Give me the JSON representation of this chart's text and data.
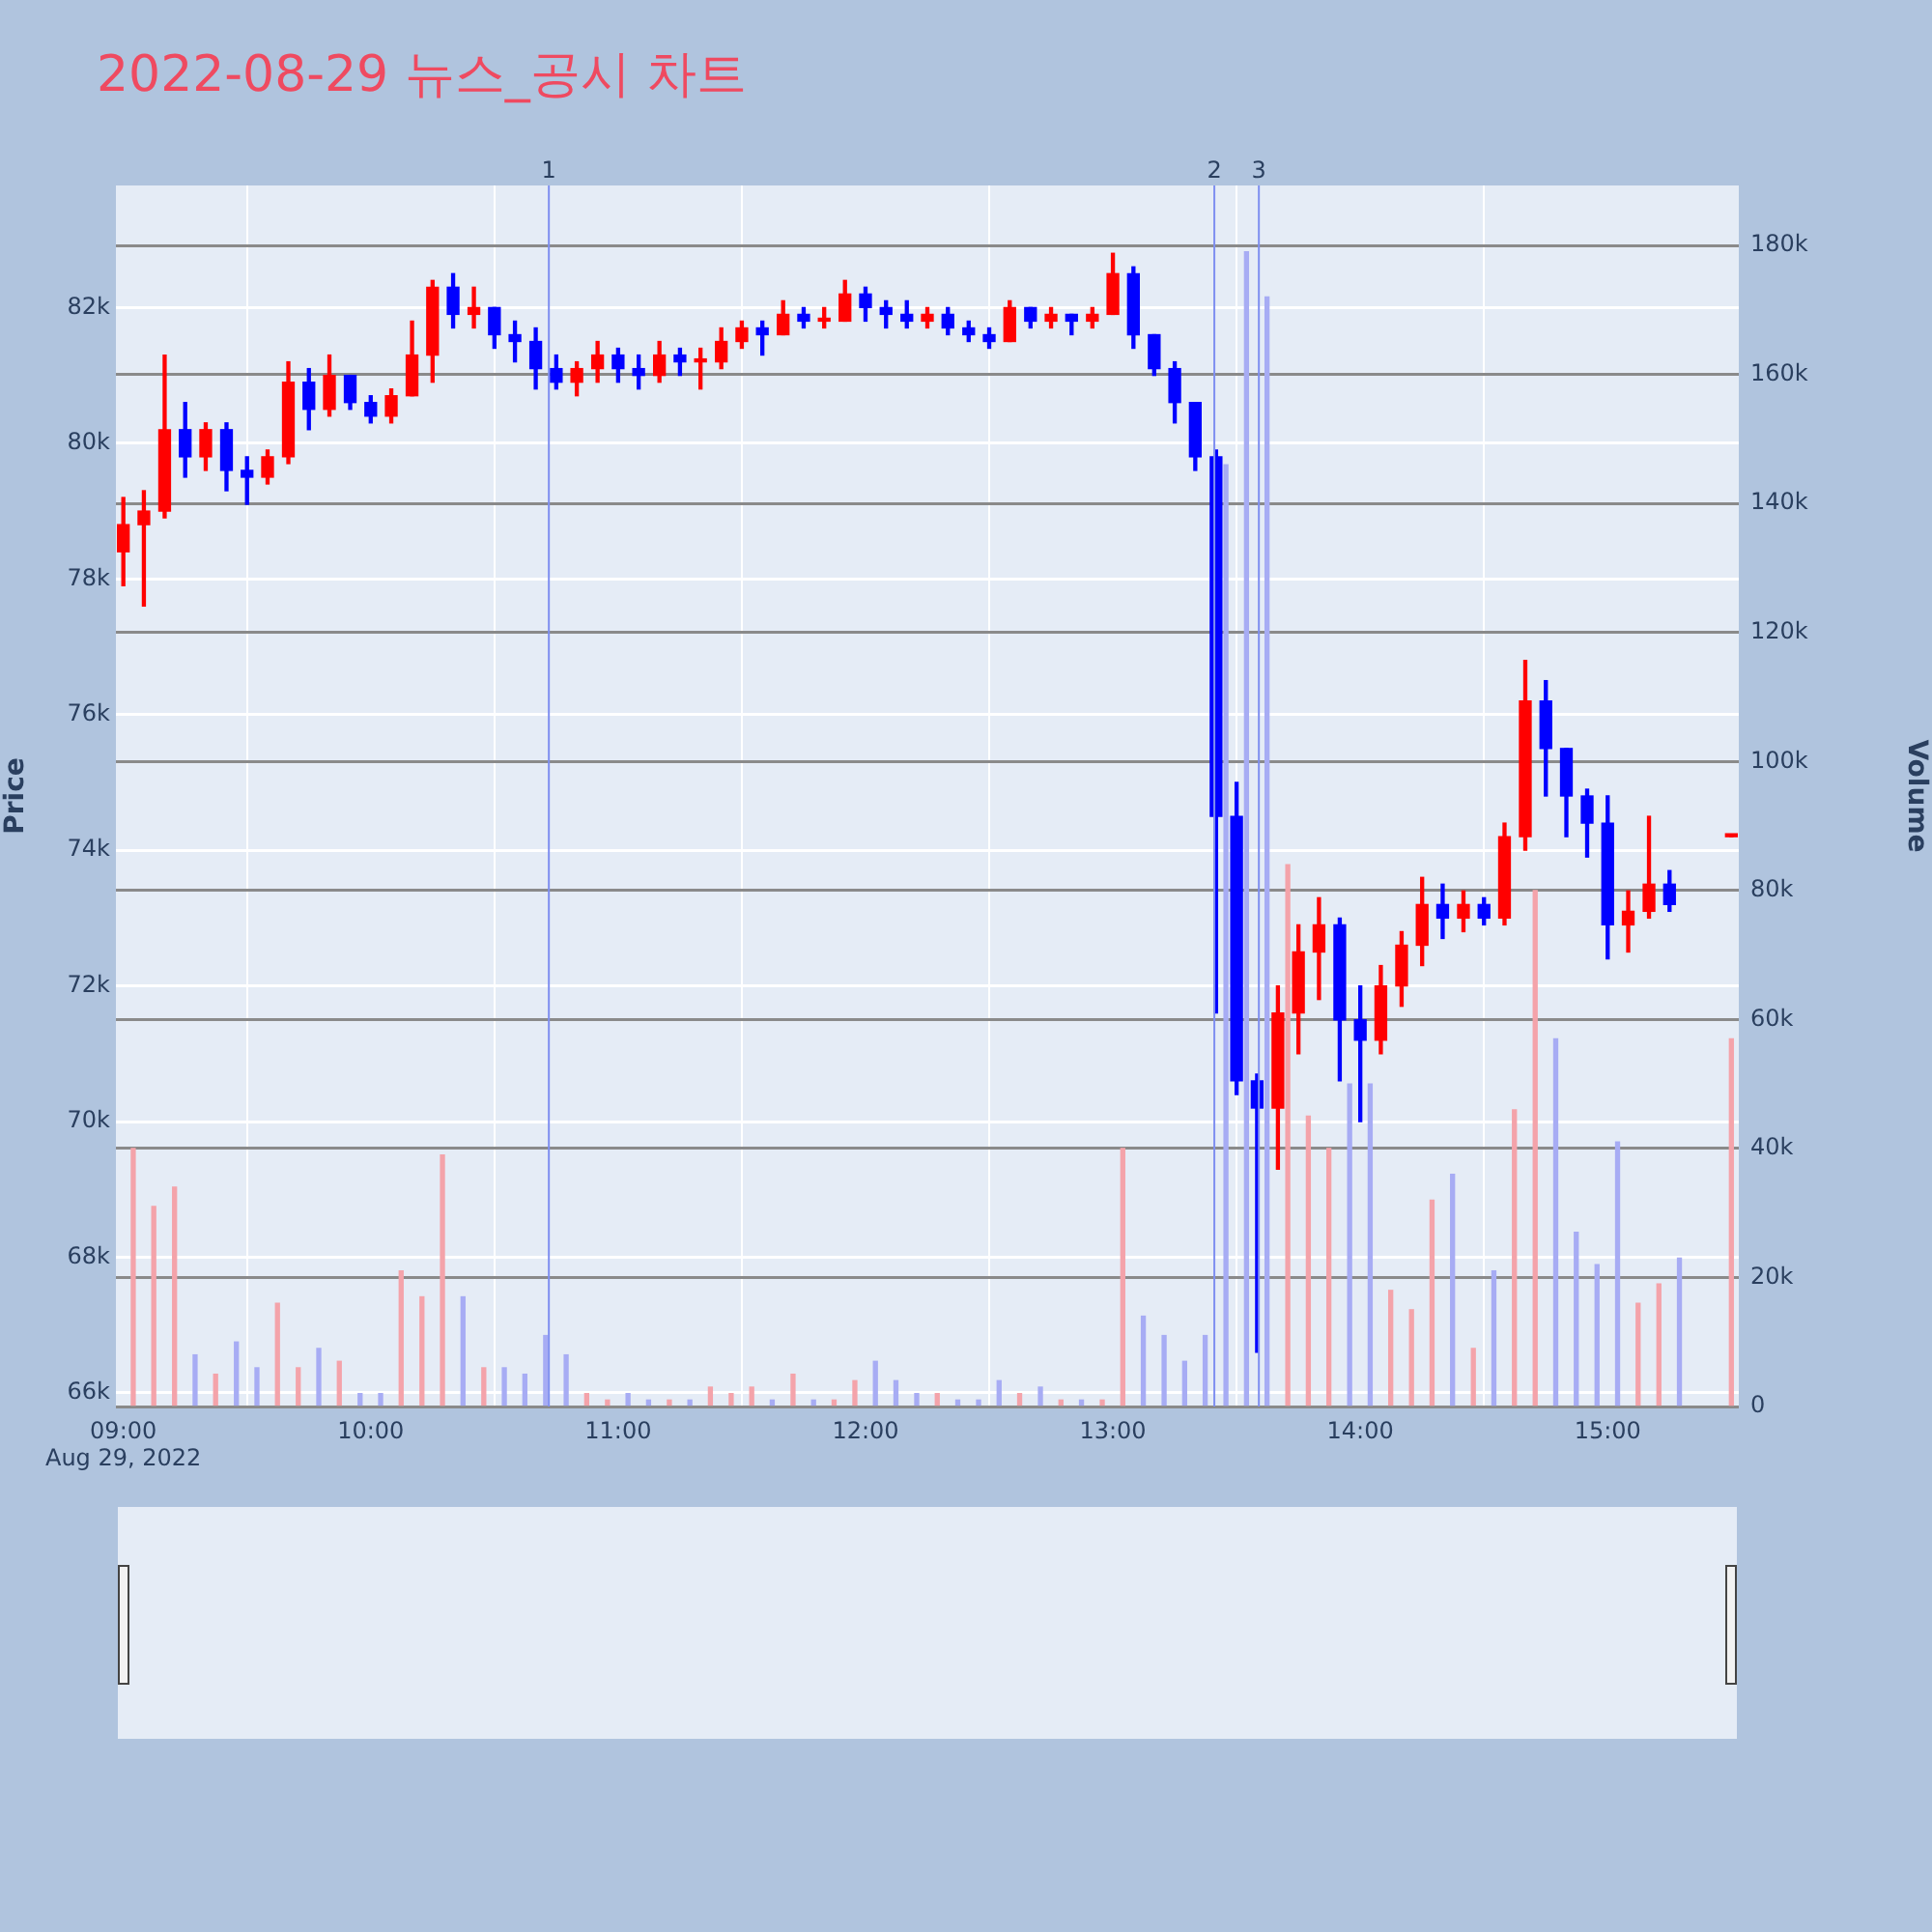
{
  "chart_data": {
    "type": "candlestick",
    "title": "2022-08-29 뉴스_공시 차트",
    "ylabel": "Price",
    "y2label": "Volume",
    "x": [
      9.0,
      9.083,
      9.167,
      9.25,
      9.333,
      9.417,
      9.5,
      9.583,
      9.667,
      9.75,
      9.833,
      9.917,
      10.0,
      10.083,
      10.167,
      10.25,
      10.333,
      10.417,
      10.5,
      10.583,
      10.667,
      10.75,
      10.833,
      10.917,
      11.0,
      11.083,
      11.167,
      11.25,
      11.333,
      11.417,
      11.5,
      11.583,
      11.667,
      11.75,
      11.833,
      11.917,
      12.0,
      12.083,
      12.167,
      12.25,
      12.333,
      12.417,
      12.5,
      12.583,
      12.667,
      12.75,
      12.833,
      12.917,
      13.0,
      13.083,
      13.167,
      13.25,
      13.333,
      13.417,
      13.5,
      13.583,
      13.667,
      13.75,
      13.833,
      13.917,
      14.0,
      14.083,
      14.167,
      14.25,
      14.333,
      14.417,
      14.5,
      14.583,
      14.667,
      14.75,
      14.833,
      14.917,
      15.0,
      15.083,
      15.167,
      15.25,
      15.5
    ],
    "ohlc": [
      [
        78400,
        79200,
        77900,
        78800
      ],
      [
        78800,
        79300,
        77600,
        79000
      ],
      [
        79000,
        81300,
        78900,
        80200
      ],
      [
        80200,
        80600,
        79500,
        79800
      ],
      [
        79800,
        80300,
        79600,
        80200
      ],
      [
        80200,
        80300,
        79300,
        79600
      ],
      [
        79600,
        79800,
        79100,
        79500
      ],
      [
        79500,
        79900,
        79400,
        79800
      ],
      [
        79800,
        81200,
        79700,
        80900
      ],
      [
        80900,
        81100,
        80200,
        80500
      ],
      [
        80500,
        81300,
        80400,
        81000
      ],
      [
        81000,
        81000,
        80500,
        80600
      ],
      [
        80600,
        80700,
        80300,
        80400
      ],
      [
        80400,
        80800,
        80300,
        80700
      ],
      [
        80700,
        81800,
        80700,
        81300
      ],
      [
        81300,
        82400,
        80900,
        82300
      ],
      [
        82300,
        82500,
        81700,
        81900
      ],
      [
        81900,
        82300,
        81700,
        82000
      ],
      [
        82000,
        82000,
        81400,
        81600
      ],
      [
        81600,
        81800,
        81200,
        81500
      ],
      [
        81500,
        81700,
        80800,
        81100
      ],
      [
        81100,
        81300,
        80800,
        80900
      ],
      [
        80900,
        81200,
        80700,
        81100
      ],
      [
        81100,
        81500,
        80900,
        81300
      ],
      [
        81300,
        81400,
        80900,
        81100
      ],
      [
        81100,
        81300,
        80800,
        81000
      ],
      [
        81000,
        81500,
        80900,
        81300
      ],
      [
        81300,
        81400,
        81000,
        81200
      ],
      [
        81200,
        81400,
        80800,
        81200
      ],
      [
        81200,
        81700,
        81100,
        81500
      ],
      [
        81500,
        81800,
        81400,
        81700
      ],
      [
        81700,
        81800,
        81300,
        81600
      ],
      [
        81600,
        82100,
        81600,
        81900
      ],
      [
        81900,
        82000,
        81700,
        81800
      ],
      [
        81800,
        82000,
        81700,
        81800
      ],
      [
        81800,
        82400,
        81800,
        82200
      ],
      [
        82200,
        82300,
        81800,
        82000
      ],
      [
        82000,
        82100,
        81700,
        81900
      ],
      [
        81900,
        82100,
        81700,
        81800
      ],
      [
        81800,
        82000,
        81700,
        81900
      ],
      [
        81900,
        82000,
        81600,
        81700
      ],
      [
        81700,
        81800,
        81500,
        81600
      ],
      [
        81600,
        81700,
        81400,
        81500
      ],
      [
        81500,
        82100,
        81500,
        82000
      ],
      [
        82000,
        82000,
        81700,
        81800
      ],
      [
        81800,
        82000,
        81700,
        81900
      ],
      [
        81900,
        81900,
        81600,
        81800
      ],
      [
        81800,
        82000,
        81700,
        81900
      ],
      [
        81900,
        82800,
        81900,
        82500
      ],
      [
        82500,
        82600,
        81400,
        81600
      ],
      [
        81600,
        81600,
        81000,
        81100
      ],
      [
        81100,
        81200,
        80300,
        80600
      ],
      [
        80600,
        80600,
        79600,
        79800
      ],
      [
        79800,
        79900,
        71600,
        74500
      ],
      [
        74500,
        75000,
        70400,
        70600
      ],
      [
        70600,
        70700,
        66600,
        70200
      ],
      [
        70200,
        72000,
        69300,
        71600
      ],
      [
        71600,
        72900,
        71000,
        72500
      ],
      [
        72500,
        73300,
        71800,
        72900
      ],
      [
        72900,
        73000,
        70600,
        71500
      ],
      [
        71500,
        72000,
        70000,
        71200
      ],
      [
        71200,
        72300,
        71000,
        72000
      ],
      [
        72000,
        72800,
        71700,
        72600
      ],
      [
        72600,
        73600,
        72300,
        73200
      ],
      [
        73200,
        73500,
        72700,
        73000
      ],
      [
        73000,
        73400,
        72800,
        73200
      ],
      [
        73200,
        73300,
        72900,
        73000
      ],
      [
        73000,
        74400,
        72900,
        74200
      ],
      [
        74200,
        76800,
        74000,
        76200
      ],
      [
        76200,
        76500,
        74800,
        75500
      ],
      [
        75500,
        75500,
        74200,
        74800
      ],
      [
        74800,
        74900,
        73900,
        74400
      ],
      [
        74400,
        74800,
        72400,
        72900
      ],
      [
        72900,
        73400,
        72500,
        73100
      ],
      [
        73100,
        74500,
        73000,
        73500
      ],
      [
        73500,
        73700,
        73100,
        73200
      ],
      [
        74200,
        74200,
        74200,
        74200
      ]
    ],
    "colors": [
      "#ff0000",
      "#ff0000",
      "#ff0000",
      "#0000ff",
      "#ff0000",
      "#0000ff",
      "#0000ff",
      "#ff0000",
      "#ff0000",
      "#0000ff",
      "#ff0000",
      "#0000ff",
      "#0000ff",
      "#ff0000",
      "#ff0000",
      "#ff0000",
      "#0000ff",
      "#ff0000",
      "#0000ff",
      "#0000ff",
      "#0000ff",
      "#0000ff",
      "#ff0000",
      "#ff0000",
      "#0000ff",
      "#0000ff",
      "#ff0000",
      "#0000ff",
      "#ff0000",
      "#ff0000",
      "#ff0000",
      "#0000ff",
      "#ff0000",
      "#0000ff",
      "#ff0000",
      "#ff0000",
      "#0000ff",
      "#0000ff",
      "#0000ff",
      "#ff0000",
      "#0000ff",
      "#0000ff",
      "#0000ff",
      "#ff0000",
      "#0000ff",
      "#ff0000",
      "#0000ff",
      "#ff0000",
      "#ff0000",
      "#0000ff",
      "#0000ff",
      "#0000ff",
      "#0000ff",
      "#0000ff",
      "#0000ff",
      "#0000ff",
      "#ff0000",
      "#ff0000",
      "#ff0000",
      "#0000ff",
      "#0000ff",
      "#ff0000",
      "#ff0000",
      "#ff0000",
      "#0000ff",
      "#ff0000",
      "#0000ff",
      "#ff0000",
      "#ff0000",
      "#0000ff",
      "#0000ff",
      "#0000ff",
      "#0000ff",
      "#ff0000",
      "#ff0000",
      "#0000ff",
      "#ff0000"
    ],
    "series": [
      {
        "type": "bar",
        "axis": "y2",
        "x": [
          9.04,
          9.123,
          9.207,
          9.29,
          9.373,
          9.457,
          9.54,
          9.623,
          9.707,
          9.79,
          9.873,
          9.957,
          10.04,
          10.123,
          10.207,
          10.29,
          10.373,
          10.457,
          10.54,
          10.623,
          10.707,
          10.79,
          10.873,
          10.957,
          11.04,
          11.123,
          11.207,
          11.29,
          11.373,
          11.457,
          11.54,
          11.623,
          11.707,
          11.79,
          11.873,
          11.957,
          12.04,
          12.123,
          12.207,
          12.29,
          12.373,
          12.457,
          12.54,
          12.623,
          12.707,
          12.79,
          12.873,
          12.957,
          13.04,
          13.123,
          13.207,
          13.29,
          13.373,
          13.457,
          13.54,
          13.623,
          13.707,
          13.79,
          13.873,
          13.957,
          14.04,
          14.123,
          14.207,
          14.29,
          14.373,
          14.457,
          14.54,
          14.623,
          14.707,
          14.79,
          14.873,
          14.957,
          15.04,
          15.123,
          15.207,
          15.29,
          15.5
        ],
        "values": [
          40000,
          31000,
          34000,
          8000,
          5000,
          10000,
          6000,
          16000,
          6000,
          9000,
          7000,
          2000,
          2000,
          21000,
          17000,
          39000,
          17000,
          6000,
          6000,
          5000,
          11000,
          8000,
          2000,
          1000,
          2000,
          1000,
          1000,
          1000,
          3000,
          2000,
          3000,
          1000,
          5000,
          1000,
          1000,
          4000,
          7000,
          4000,
          2000,
          2000,
          1000,
          1000,
          4000,
          2000,
          3000,
          1000,
          1000,
          1000,
          40000,
          14000,
          11000,
          7000,
          11000,
          146000,
          179000,
          172000,
          84000,
          45000,
          40000,
          50000,
          50000,
          18000,
          15000,
          32000,
          36000,
          9000,
          21000,
          46000,
          80000,
          57000,
          27000,
          22000,
          41000,
          16000,
          19000,
          23000,
          57000
        ],
        "colors": [
          "#f4a3aa",
          "#f4a3aa",
          "#f4a3aa",
          "#a7acf4",
          "#f4a3aa",
          "#a7acf4",
          "#a7acf4",
          "#f4a3aa",
          "#f4a3aa",
          "#a7acf4",
          "#f4a3aa",
          "#a7acf4",
          "#a7acf4",
          "#f4a3aa",
          "#f4a3aa",
          "#f4a3aa",
          "#a7acf4",
          "#f4a3aa",
          "#a7acf4",
          "#a7acf4",
          "#a7acf4",
          "#a7acf4",
          "#f4a3aa",
          "#f4a3aa",
          "#a7acf4",
          "#a7acf4",
          "#f4a3aa",
          "#a7acf4",
          "#f4a3aa",
          "#f4a3aa",
          "#f4a3aa",
          "#a7acf4",
          "#f4a3aa",
          "#a7acf4",
          "#f4a3aa",
          "#f4a3aa",
          "#a7acf4",
          "#a7acf4",
          "#a7acf4",
          "#f4a3aa",
          "#a7acf4",
          "#a7acf4",
          "#a7acf4",
          "#f4a3aa",
          "#a7acf4",
          "#f4a3aa",
          "#a7acf4",
          "#f4a3aa",
          "#f4a3aa",
          "#a7acf4",
          "#a7acf4",
          "#a7acf4",
          "#a7acf4",
          "#a7acf4",
          "#a7acf4",
          "#a7acf4",
          "#f4a3aa",
          "#f4a3aa",
          "#f4a3aa",
          "#a7acf4",
          "#a7acf4",
          "#f4a3aa",
          "#f4a3aa",
          "#f4a3aa",
          "#a7acf4",
          "#f4a3aa",
          "#a7acf4",
          "#f4a3aa",
          "#f4a3aa",
          "#a7acf4",
          "#a7acf4",
          "#a7acf4",
          "#a7acf4",
          "#f4a3aa",
          "#f4a3aa",
          "#a7acf4",
          "#f4a3aa"
        ]
      }
    ],
    "xlim": [
      8.97,
      15.53
    ],
    "xticks": [
      {
        "value": 9,
        "label": "09:00\nAug 29, 2022"
      },
      {
        "value": 10,
        "label": "10:00"
      },
      {
        "value": 11,
        "label": "11:00"
      },
      {
        "value": 12,
        "label": "12:00"
      },
      {
        "value": 13,
        "label": "13:00"
      },
      {
        "value": 14,
        "label": "14:00"
      },
      {
        "value": 15,
        "label": "15:00"
      }
    ],
    "ylim": [
      65800,
      83800
    ],
    "yticks": [
      {
        "value": 66000,
        "label": "66k"
      },
      {
        "value": 68000,
        "label": "68k"
      },
      {
        "value": 70000,
        "label": "70k"
      },
      {
        "value": 72000,
        "label": "72k"
      },
      {
        "value": 74000,
        "label": "74k"
      },
      {
        "value": 76000,
        "label": "76k"
      },
      {
        "value": 78000,
        "label": "78k"
      },
      {
        "value": 80000,
        "label": "80k"
      },
      {
        "value": 82000,
        "label": "82k"
      }
    ],
    "y2lim": [
      0,
      189300
    ],
    "y2ticks": [
      0,
      {
        "value": 20000,
        "label": "20k"
      },
      {
        "value": 40000,
        "label": "40k"
      },
      {
        "value": 60000,
        "label": "60k"
      },
      {
        "value": 80000,
        "label": "80k"
      },
      {
        "value": 100000,
        "label": "100k"
      },
      {
        "value": 120000,
        "label": "120k"
      },
      {
        "value": 140000,
        "label": "140k"
      },
      {
        "value": 160000,
        "label": "160k"
      },
      {
        "value": 180000,
        "label": "180k"
      }
    ],
    "ref_lines": [
      {
        "axis": "x",
        "value": 10.72,
        "color": "#7f8ff0"
      },
      {
        "axis": "x",
        "value": 13.41,
        "color": "#7f8ff0"
      },
      {
        "axis": "x",
        "value": 13.59,
        "color": "#7f8ff0"
      }
    ],
    "annotations": [
      {
        "text": "1",
        "x": 10.72,
        "y": 83800
      },
      {
        "text": "2",
        "x": 13.41,
        "y": 83800
      },
      {
        "text": "3",
        "x": 13.59,
        "y": 83800
      }
    ],
    "grid": true,
    "legend": false
  }
}
